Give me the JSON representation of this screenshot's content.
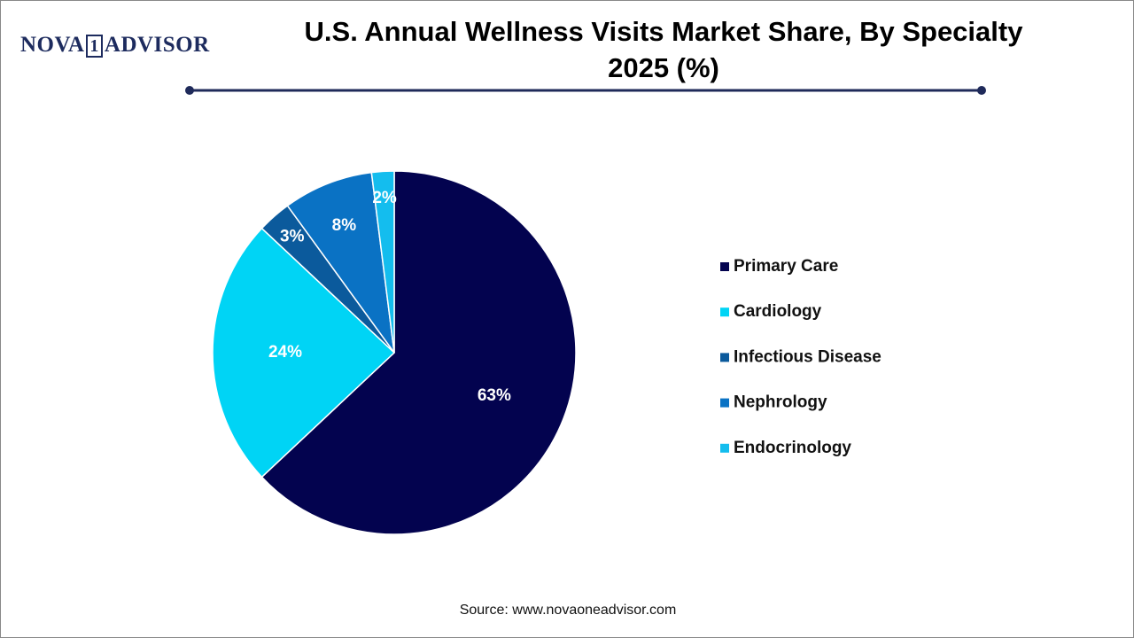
{
  "logo": {
    "left": "NOVA",
    "mark": "1",
    "right": "ADVISOR"
  },
  "source": "Source: www.novaoneadvisor.com",
  "chart_data": {
    "type": "pie",
    "title": "U.S. Annual Wellness Visits Market Share, By Specialty 2025 (%)",
    "categories": [
      "Primary Care",
      "Cardiology",
      "Infectious Disease",
      "Nephrology",
      "Endocrinology"
    ],
    "values": [
      63,
      24,
      3,
      8,
      2
    ],
    "value_labels": [
      "63%",
      "24%",
      "3%",
      "8%",
      "2%"
    ],
    "colors": [
      "#03034f",
      "#00d4f5",
      "#0b5a9c",
      "#0a72c4",
      "#14bdee"
    ],
    "legend": "right"
  }
}
